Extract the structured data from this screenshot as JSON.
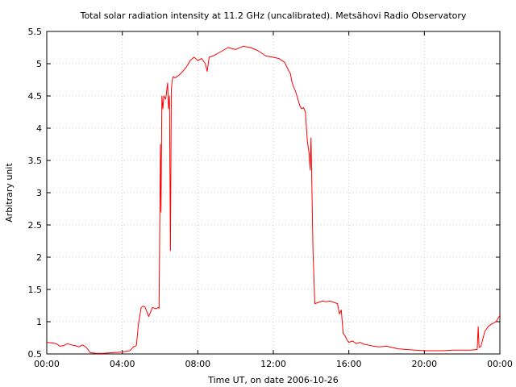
{
  "chart_data": {
    "type": "line",
    "title": "Total solar radiation intensity at 11.2 GHz (uncalibrated). Metsähovi Radio Observatory",
    "xlabel": "Time UT, on date 2006-10-26",
    "ylabel": "Arbitrary unit",
    "xlim": [
      0,
      24
    ],
    "ylim": [
      0.5,
      5.5
    ],
    "grid": true,
    "x_ticks": [
      {
        "value": 0,
        "label": "00:00"
      },
      {
        "value": 4,
        "label": "04:00"
      },
      {
        "value": 8,
        "label": "08:00"
      },
      {
        "value": 12,
        "label": "12:00"
      },
      {
        "value": 16,
        "label": "16:00"
      },
      {
        "value": 20,
        "label": "20:00"
      },
      {
        "value": 24,
        "label": "00:00"
      }
    ],
    "y_ticks": [
      {
        "value": 0.5,
        "label": "0.5"
      },
      {
        "value": 1,
        "label": "1"
      },
      {
        "value": 1.5,
        "label": "1.5"
      },
      {
        "value": 2,
        "label": "2"
      },
      {
        "value": 2.5,
        "label": "2.5"
      },
      {
        "value": 3,
        "label": "3"
      },
      {
        "value": 3.5,
        "label": "3.5"
      },
      {
        "value": 4,
        "label": "4"
      },
      {
        "value": 4.5,
        "label": "4.5"
      },
      {
        "value": 5,
        "label": "5"
      },
      {
        "value": 5.5,
        "label": "5.5"
      }
    ],
    "series": [
      {
        "color": "#ff0000",
        "x": [
          0,
          0.3,
          0.5,
          0.7,
          0.9,
          1.1,
          1.3,
          1.5,
          1.7,
          1.9,
          2.1,
          2.3,
          2.6,
          3.0,
          3.5,
          4.0,
          4.2,
          4.4,
          4.5,
          4.6,
          4.75,
          4.85,
          5.0,
          5.1,
          5.2,
          5.4,
          5.6,
          5.8,
          5.9,
          5.95,
          6.0,
          6.02,
          6.05,
          6.1,
          6.15,
          6.2,
          6.3,
          6.4,
          6.45,
          6.5,
          6.55,
          6.6,
          6.65,
          6.7,
          6.8,
          7.0,
          7.2,
          7.4,
          7.6,
          7.8,
          8.0,
          8.2,
          8.4,
          8.5,
          8.6,
          8.8,
          9.0,
          9.3,
          9.6,
          10.0,
          10.4,
          10.8,
          11.2,
          11.6,
          12.0,
          12.3,
          12.6,
          12.8,
          12.9,
          13.0,
          13.2,
          13.4,
          13.5,
          13.6,
          13.7,
          13.8,
          13.9,
          13.95,
          14.0,
          14.05,
          14.1,
          14.2,
          14.4,
          14.6,
          14.8,
          15.0,
          15.2,
          15.4,
          15.5,
          15.6,
          15.7,
          15.8,
          15.9,
          16.0,
          16.2,
          16.4,
          16.6,
          16.8,
          17.0,
          17.3,
          17.6,
          18.0,
          18.3,
          18.6,
          19.0,
          19.5,
          20.0,
          20.5,
          21.0,
          21.5,
          22.0,
          22.5,
          22.8,
          22.85,
          22.9,
          23.0,
          23.2,
          23.4,
          23.6,
          23.8,
          23.9,
          24.0
        ],
        "values": [
          0.68,
          0.67,
          0.66,
          0.62,
          0.63,
          0.66,
          0.64,
          0.63,
          0.61,
          0.64,
          0.6,
          0.52,
          0.51,
          0.51,
          0.52,
          0.53,
          0.54,
          0.55,
          0.58,
          0.61,
          0.63,
          0.95,
          1.22,
          1.24,
          1.23,
          1.08,
          1.22,
          1.2,
          1.22,
          1.21,
          3.0,
          3.75,
          2.7,
          4.5,
          4.3,
          4.5,
          4.45,
          4.7,
          4.3,
          4.5,
          2.1,
          4.6,
          4.75,
          4.8,
          4.78,
          4.82,
          4.88,
          4.95,
          5.05,
          5.1,
          5.05,
          5.08,
          5.0,
          4.88,
          5.1,
          5.12,
          5.15,
          5.2,
          5.25,
          5.22,
          5.27,
          5.25,
          5.2,
          5.12,
          5.1,
          5.08,
          5.02,
          4.9,
          4.85,
          4.7,
          4.55,
          4.35,
          4.3,
          4.32,
          4.25,
          3.8,
          3.6,
          3.35,
          3.85,
          3.0,
          2.1,
          1.28,
          1.3,
          1.32,
          1.31,
          1.32,
          1.3,
          1.28,
          1.12,
          1.18,
          0.82,
          0.78,
          0.72,
          0.68,
          0.7,
          0.66,
          0.68,
          0.65,
          0.64,
          0.62,
          0.61,
          0.62,
          0.6,
          0.58,
          0.57,
          0.56,
          0.55,
          0.55,
          0.55,
          0.56,
          0.56,
          0.56,
          0.57,
          0.92,
          0.6,
          0.62,
          0.85,
          0.93,
          0.97,
          1.0,
          1.05,
          1.1
        ]
      }
    ]
  }
}
